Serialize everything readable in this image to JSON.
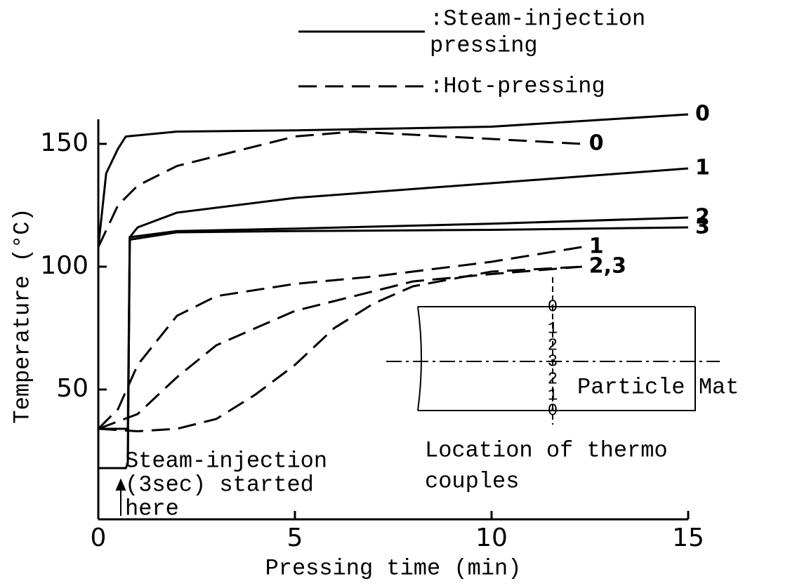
{
  "chart_data": {
    "type": "line",
    "x_label": "Pressing time (min)",
    "y_label": "Temperature (°C)",
    "xlim": [
      0,
      15
    ],
    "ylim": [
      0,
      160
    ],
    "xticks": [
      0,
      5,
      10,
      15
    ],
    "yticks": [
      50,
      100,
      150
    ],
    "color": "#000000",
    "legend": [
      {
        "lines": [
          ":Steam-injection",
          "pressing"
        ],
        "style": "solid"
      },
      {
        "lines": [
          ":Hot-pressing"
        ],
        "style": "dashed"
      }
    ],
    "series": [
      {
        "name": "0",
        "style": "solid",
        "x": [
          0,
          0.2,
          0.5,
          0.7,
          2,
          5,
          10,
          15
        ],
        "values": [
          108,
          138,
          148,
          153,
          155,
          155.5,
          157,
          162
        ]
      },
      {
        "name": "1",
        "style": "solid",
        "x": [
          0,
          0.75,
          0.8,
          1,
          2,
          5,
          10,
          15
        ],
        "values": [
          34,
          34,
          112,
          116,
          122,
          128,
          134,
          140
        ]
      },
      {
        "name": "2",
        "style": "solid",
        "x": [
          0,
          0.7,
          0.75,
          0.8,
          2,
          5,
          10,
          15
        ],
        "values": [
          18,
          18,
          20,
          112,
          114.5,
          115.5,
          117.5,
          120
        ]
      },
      {
        "name": "3",
        "style": "solid",
        "x": [
          0.75,
          0.8,
          2,
          5,
          10,
          15
        ],
        "values": [
          20,
          111,
          114,
          114.5,
          115,
          116
        ]
      },
      {
        "name": "0",
        "style": "dashed",
        "x": [
          0,
          0.5,
          1,
          2,
          5,
          6.5,
          10,
          12.3
        ],
        "values": [
          108,
          125,
          133,
          141,
          153,
          155,
          152,
          150
        ]
      },
      {
        "name": "1",
        "style": "dashed",
        "x": [
          0,
          0.5,
          1,
          2,
          3,
          5,
          7,
          10,
          12.3
        ],
        "values": [
          34,
          42,
          60,
          80,
          88,
          93,
          96,
          102,
          108
        ]
      },
      {
        "name": "2,3",
        "style": "dashed",
        "x": [
          0,
          1,
          2,
          3,
          5,
          8,
          10,
          12.3
        ],
        "values": [
          34,
          40,
          55,
          68,
          82,
          94,
          97,
          100
        ]
      },
      {
        "style": "dashed",
        "x": [
          0,
          1,
          2,
          3,
          4,
          5,
          6,
          7,
          8,
          10,
          12.3
        ],
        "values": [
          34,
          33,
          34,
          38,
          48,
          60,
          75,
          85,
          92,
          98,
          100
        ]
      }
    ],
    "annotation": {
      "lines": [
        "Steam-injection",
        "(3sec) started",
        "here"
      ]
    },
    "inset": {
      "positions": [
        "0",
        "1",
        "2",
        "3",
        "2",
        "1",
        "0"
      ],
      "mat_label": "Particle Mat",
      "caption": [
        "Location of thermo",
        "couples"
      ]
    }
  }
}
